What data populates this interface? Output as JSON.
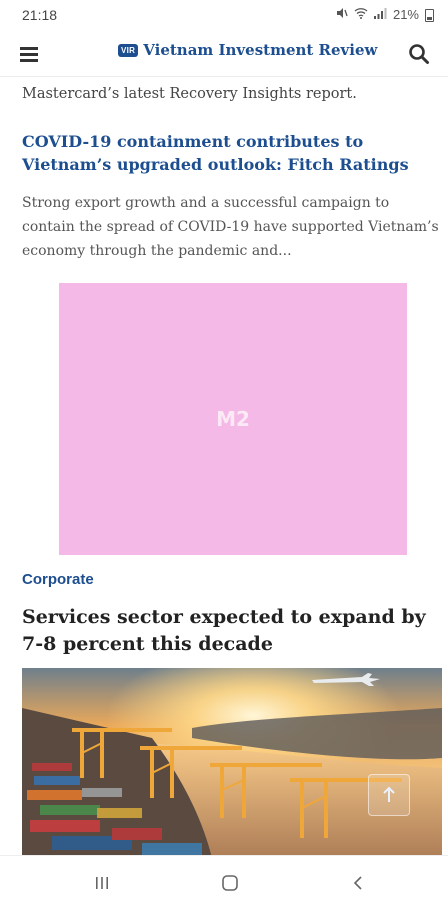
{
  "status_bar": {
    "time": "21:18",
    "battery": "21%"
  },
  "header": {
    "logo_badge": "VIR",
    "logo_text": "Vietnam Investment Review"
  },
  "content": {
    "top_snippet": "Mastercard’s latest Recovery Insights report.",
    "article": {
      "title": "COVID-19 containment contributes to Vietnam’s upgraded outlook: Fitch Ratings",
      "excerpt": "Strong export growth and a successful campaign to contain the spread of COVID-19 have supported Vietnam’s economy through the pandemic and..."
    },
    "ad": {
      "label": "M2",
      "color": "#f4b9e6"
    },
    "category": "Corporate",
    "headline": "Services sector expected to expand by 7-8 percent this decade"
  },
  "colors": {
    "brand": "#1d4e8f",
    "text": "#222222"
  },
  "icons": {
    "menu": "hamburger-icon",
    "search": "search-icon",
    "recent": "recent-apps-icon",
    "home": "home-icon",
    "back": "back-icon",
    "scroll_top": "arrow-up-icon"
  }
}
